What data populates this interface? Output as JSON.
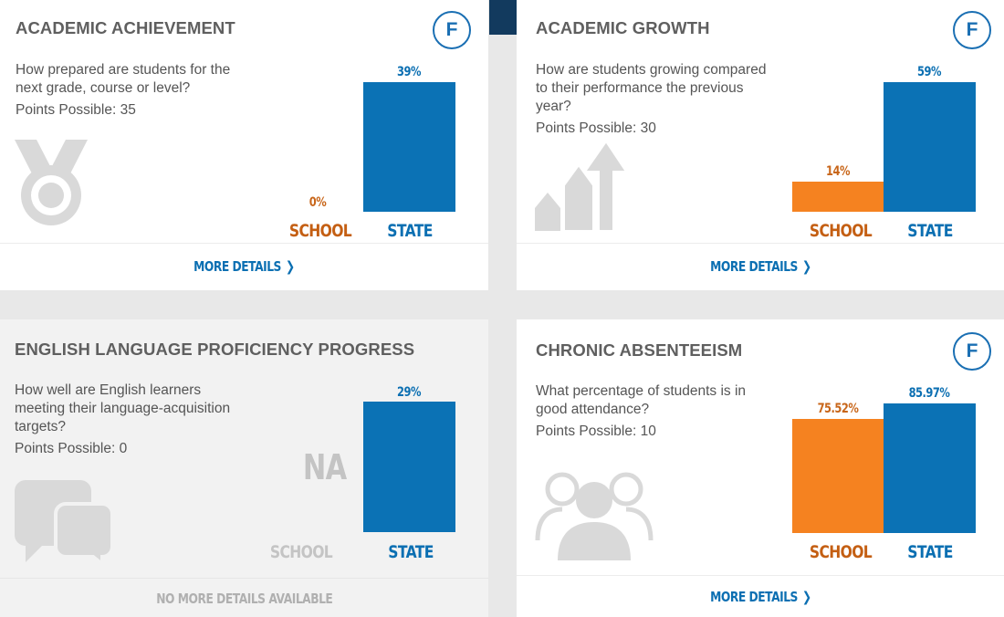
{
  "cards": {
    "achievement": {
      "title": "ACADEMIC ACHIEVEMENT",
      "grade": "F",
      "question": "How prepared are students for the next grade, course or level?",
      "points": "Points Possible: 35",
      "school_value": "0%",
      "state_value": "39%",
      "school_label": "SCHOOL",
      "state_label": "STATE",
      "link": "MORE DETAILS",
      "icon": "medal-icon"
    },
    "growth": {
      "title": "ACADEMIC GROWTH",
      "grade": "F",
      "question": "How are students growing compared to their performance the previous year?",
      "points": "Points Possible: 30",
      "school_value": "14%",
      "state_value": "59%",
      "school_label": "SCHOOL",
      "state_label": "STATE",
      "link": "MORE DETAILS",
      "icon": "growth-arrows-icon"
    },
    "english": {
      "title": "ENGLISH LANGUAGE PROFICIENCY PROGRESS",
      "question": "How well are English learners meeting their language-acquisition targets?",
      "points": "Points Possible: 0",
      "school_value": "NA",
      "state_value": "29%",
      "school_label": "SCHOOL",
      "state_label": "STATE",
      "link": "NO MORE DETAILS AVAILABLE",
      "icon": "speech-bubbles-icon"
    },
    "absenteeism": {
      "title": "CHRONIC ABSENTEEISM",
      "grade": "F",
      "question": "What percentage of students is in good attendance?",
      "points": "Points Possible: 10",
      "school_value": "75.52%",
      "state_value": "85.97%",
      "school_label": "SCHOOL",
      "state_label": "STATE",
      "link": "MORE DETAILS",
      "icon": "people-group-icon"
    }
  },
  "colors": {
    "state": "#0b72b5",
    "school": "#f58220",
    "grade": "#1a6fb3",
    "muted": "#c4c4c4"
  }
}
